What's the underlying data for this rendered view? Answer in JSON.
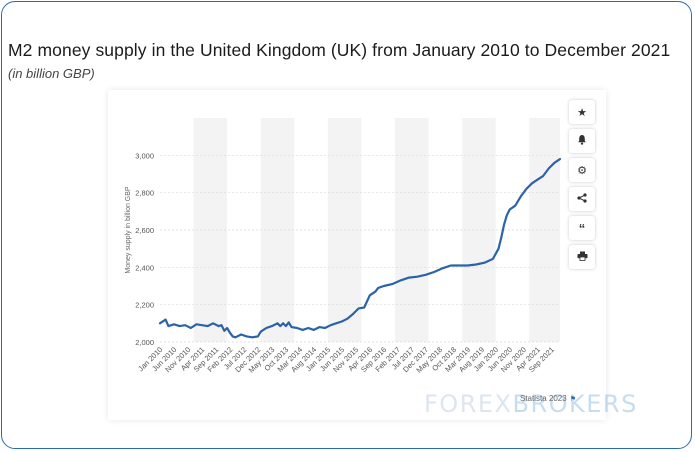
{
  "header": {
    "title": "M2 money supply in the United Kingdom (UK) from January 2010 to December 2021",
    "subtitle": "(in billion GBP)"
  },
  "toolbar": {
    "icons": [
      "star-icon",
      "bell-icon",
      "gear-icon",
      "share-icon",
      "quote-icon",
      "print-icon"
    ]
  },
  "credit": {
    "text": "Statista 2023"
  },
  "watermark": {
    "part1": "FOREX",
    "part2": "BROKERS"
  },
  "colors": {
    "line": "#2c62a8",
    "border": "#2b6cb0",
    "band": "#f3f3f3"
  },
  "chart_data": {
    "type": "line",
    "title": "M2 money supply in the United Kingdom (UK) from January 2010 to December 2021",
    "subtitle": "(in billion GBP)",
    "xlabel": "",
    "ylabel": "Money supply in billion GBP",
    "ylim": [
      2000,
      3200
    ],
    "yticks": [
      "2,000",
      "2,200",
      "2,400",
      "2,600",
      "2,800",
      "3,000"
    ],
    "ytick_values": [
      2000,
      2200,
      2400,
      2600,
      2800,
      3000
    ],
    "xlim": [
      "Jan 2010",
      "Dec 2021"
    ],
    "xtick_labels": [
      "Jan 2010",
      "Jun 2010",
      "Nov 2010",
      "Apr 2011",
      "Sep 2011",
      "Feb 2012",
      "Jul 2012",
      "Dec 2012",
      "May 2013",
      "Oct 2013",
      "Mar 2014",
      "Aug 2014",
      "Jan 2015",
      "Jun 2015",
      "Nov 2015",
      "Apr 2016",
      "Sep 2016",
      "Feb 2017",
      "Jul 2017",
      "Dec 2017",
      "May 2018",
      "Oct 2018",
      "Mar 2019",
      "Aug 2019",
      "Jan 2020",
      "Jun 2020",
      "Nov 2020",
      "Apr 2021",
      "Sep 2021"
    ],
    "grid": "horizontal",
    "legend": "none",
    "series": [
      {
        "x": [
          "Jan 2010",
          "Mar 2010",
          "Apr 2010",
          "Jun 2010",
          "Aug 2010",
          "Oct 2010",
          "Dec 2010",
          "Feb 2011",
          "Apr 2011",
          "Jun 2011",
          "Aug 2011",
          "Oct 2011",
          "Nov 2011",
          "Dec 2011",
          "Jan 2012",
          "Feb 2012",
          "Mar 2012",
          "Apr 2012",
          "Jun 2012",
          "Aug 2012",
          "Oct 2012",
          "Dec 2012",
          "Jan 2013",
          "Mar 2013",
          "May 2013",
          "Jul 2013",
          "Aug 2013",
          "Sep 2013",
          "Oct 2013",
          "Nov 2013",
          "Dec 2013",
          "Feb 2014",
          "Apr 2014",
          "Jun 2014",
          "Aug 2014",
          "Oct 2014",
          "Dec 2014",
          "Feb 2015",
          "Apr 2015",
          "Jun 2015",
          "Aug 2015",
          "Oct 2015",
          "Dec 2015",
          "Feb 2016",
          "Apr 2016",
          "Jun 2016",
          "Jul 2016",
          "Sep 2016",
          "Dec 2016",
          "Mar 2017",
          "Jun 2017",
          "Sep 2017",
          "Dec 2017",
          "Mar 2018",
          "Jun 2018",
          "Sep 2018",
          "Dec 2018",
          "Mar 2019",
          "Jun 2019",
          "Sep 2019",
          "Dec 2019",
          "Feb 2020",
          "Mar 2020",
          "Apr 2020",
          "May 2020",
          "Jun 2020",
          "Aug 2020",
          "Oct 2020",
          "Dec 2020",
          "Feb 2021",
          "Apr 2021",
          "Jun 2021",
          "Aug 2021",
          "Oct 2021",
          "Dec 2021"
        ],
        "values": [
          2100,
          2120,
          2085,
          2095,
          2085,
          2090,
          2075,
          2095,
          2090,
          2085,
          2100,
          2085,
          2090,
          2060,
          2075,
          2050,
          2030,
          2025,
          2040,
          2030,
          2025,
          2030,
          2055,
          2075,
          2085,
          2100,
          2085,
          2100,
          2085,
          2105,
          2080,
          2075,
          2065,
          2075,
          2065,
          2080,
          2075,
          2090,
          2100,
          2110,
          2125,
          2150,
          2180,
          2185,
          2250,
          2270,
          2290,
          2300,
          2310,
          2330,
          2345,
          2350,
          2360,
          2375,
          2395,
          2410,
          2410,
          2410,
          2415,
          2425,
          2445,
          2500,
          2560,
          2630,
          2680,
          2710,
          2730,
          2780,
          2820,
          2850,
          2870,
          2890,
          2930,
          2960,
          2980
        ]
      }
    ]
  }
}
